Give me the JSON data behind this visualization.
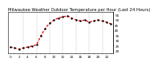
{
  "title": "Milwaukee Weather Outdoor Temperature per Hour (Last 24 Hours)",
  "hours": [
    0,
    1,
    2,
    3,
    4,
    5,
    6,
    7,
    8,
    9,
    10,
    11,
    12,
    13,
    14,
    15,
    16,
    17,
    18,
    19,
    20,
    21,
    22,
    23
  ],
  "temps": [
    24,
    23,
    22,
    23,
    24,
    25,
    26,
    35,
    42,
    47,
    50,
    52,
    53,
    54,
    52,
    50,
    49,
    50,
    48,
    49,
    50,
    49,
    48,
    46
  ],
  "line_color": "#dd0000",
  "marker_color": "#000000",
  "bg_color": "#ffffff",
  "grid_color": "#888888",
  "grid_positions": [
    3,
    6,
    9,
    12,
    15,
    18,
    21
  ],
  "right_yticks": [
    20,
    25,
    30,
    35,
    40,
    45,
    50,
    55
  ],
  "ylim": [
    18,
    58
  ],
  "xlim": [
    -0.5,
    23.5
  ],
  "title_fontsize": 3.8,
  "tick_fontsize": 3.0,
  "line_width": 0.9,
  "marker_size": 1.5,
  "xtick_positions": [
    0,
    1,
    2,
    3,
    4,
    5,
    6,
    7,
    8,
    9,
    10,
    11,
    12,
    13,
    14,
    15,
    16,
    17,
    18,
    19,
    20,
    21,
    22,
    23
  ],
  "xtick_labels": [
    "0",
    "",
    "2",
    "",
    "4",
    "",
    "6",
    "",
    "8",
    "",
    "10",
    "",
    "12",
    "",
    "14",
    "",
    "16",
    "",
    "18",
    "",
    "20",
    "",
    "22",
    ""
  ]
}
